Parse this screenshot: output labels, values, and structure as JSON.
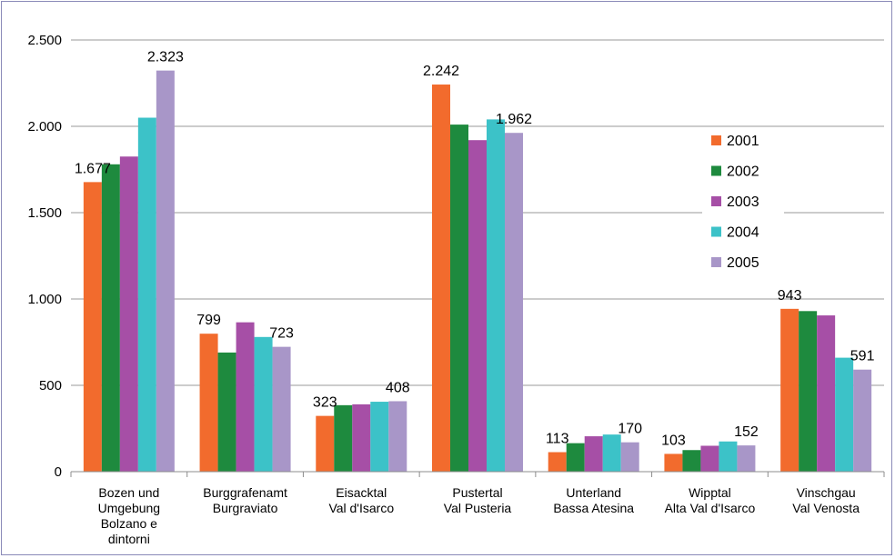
{
  "chart_data": {
    "type": "bar",
    "categories": [
      [
        "Bozen und",
        "Umgebung",
        "Bolzano e",
        "dintorni"
      ],
      [
        "Burggrafenamt",
        "Burgraviato"
      ],
      [
        "Eisacktal",
        "Val d'Isarco"
      ],
      [
        "Pustertal",
        "Val Pusteria"
      ],
      [
        "Unterland",
        "Bassa Atesina"
      ],
      [
        "Wipptal",
        "Alta Val d'Isarco"
      ],
      [
        "Vinschgau",
        "Val Venosta"
      ]
    ],
    "series": [
      {
        "name": "2001",
        "color": "#f26b2d",
        "values": [
          1677,
          799,
          323,
          2242,
          113,
          103,
          943
        ]
      },
      {
        "name": "2002",
        "color": "#1e8a3e",
        "values": [
          1780,
          690,
          385,
          2010,
          165,
          125,
          930
        ]
      },
      {
        "name": "2003",
        "color": "#a64fa6",
        "values": [
          1825,
          865,
          390,
          1920,
          205,
          150,
          905
        ]
      },
      {
        "name": "2004",
        "color": "#3cc2c8",
        "values": [
          2050,
          780,
          405,
          2040,
          215,
          175,
          660
        ]
      },
      {
        "name": "2005",
        "color": "#a896c8",
        "values": [
          2323,
          723,
          408,
          1962,
          170,
          152,
          591
        ]
      }
    ],
    "data_labels": {
      "0": [
        [
          0,
          "1.677"
        ],
        [
          4,
          "2.323"
        ]
      ],
      "1": [
        [
          0,
          "799"
        ],
        [
          4,
          "723"
        ]
      ],
      "2": [
        [
          0,
          "323"
        ],
        [
          4,
          "408"
        ]
      ],
      "3": [
        [
          0,
          "2.242"
        ],
        [
          4,
          "1.962"
        ]
      ],
      "4": [
        [
          0,
          "113"
        ],
        [
          4,
          "170"
        ]
      ],
      "5": [
        [
          0,
          "103"
        ],
        [
          4,
          "152"
        ]
      ],
      "6": [
        [
          0,
          "943"
        ],
        [
          4,
          "591"
        ]
      ]
    },
    "y_ticks": [
      {
        "value": 0,
        "label": "0"
      },
      {
        "value": 500,
        "label": "500"
      },
      {
        "value": 1000,
        "label": "1.000"
      },
      {
        "value": 1500,
        "label": "1.500"
      },
      {
        "value": 2000,
        "label": "2.000"
      },
      {
        "value": 2500,
        "label": "2.500"
      }
    ],
    "ylim": [
      0,
      2500
    ],
    "title": "",
    "xlabel": "",
    "ylabel": "",
    "grid": true,
    "legend_position": "right"
  }
}
